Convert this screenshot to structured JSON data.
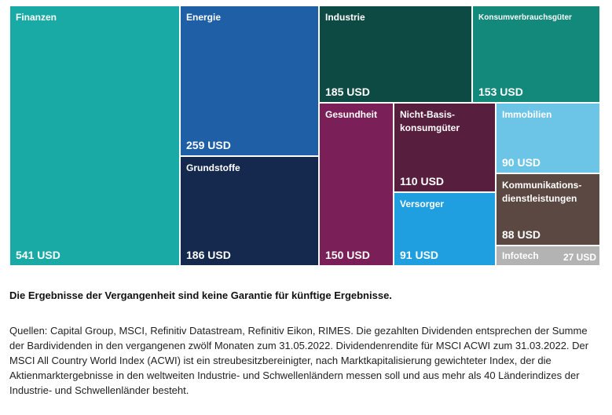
{
  "chart_data": {
    "type": "treemap",
    "categories": [
      "Finanzen",
      "Energie",
      "Grundstoffe",
      "Industrie",
      "Konsumverbrauchsgüter",
      "Gesundheit",
      "Nicht-Basis-konsumgüter",
      "Versorger",
      "Immobilien",
      "Kommunikations-dienstleistungen",
      "Infotech"
    ],
    "values": [
      541,
      259,
      186,
      185,
      153,
      150,
      110,
      91,
      90,
      88,
      27
    ],
    "value_labels": [
      "541 USD",
      "259 USD",
      "186 USD",
      "185 USD",
      "153 USD",
      "150 USD",
      "110 USD",
      "91 USD",
      "90 USD",
      "88 USD",
      "27 USD"
    ],
    "colors": [
      "#19aaa5",
      "#1e5fa6",
      "#15294e",
      "#0e4a44",
      "#12897a",
      "#7b1f58",
      "#581e3e",
      "#1f9fe0",
      "#6cc5e6",
      "#5b4842",
      "#b3b3b3"
    ]
  },
  "disclaimer": "Die Ergebnisse der Vergangenheit sind keine Garantie für künftige Ergebnisse.",
  "sources": "Quellen: Capital Group, MSCI, Refinitiv Datastream, Refinitiv Eikon, RIMES. Die gezahlten Dividenden entsprechen der Summe der Bardividenden in den vergangenen zwölf Monaten zum 31.05.2022. Dividendenrendite für MSCI ACWI zum 31.03.2022. Der MSCI All Country World Index (ACWI) ist ein streubesitzbereinigter, nach Marktkapitalisierung gewichteter Index, der die Aktienmarktergebnisse in den weltweiten Industrie- und Schwellenländern messen soll und aus mehr als 40 Länderindizes der Industrie- und Schwellenländer besteht."
}
